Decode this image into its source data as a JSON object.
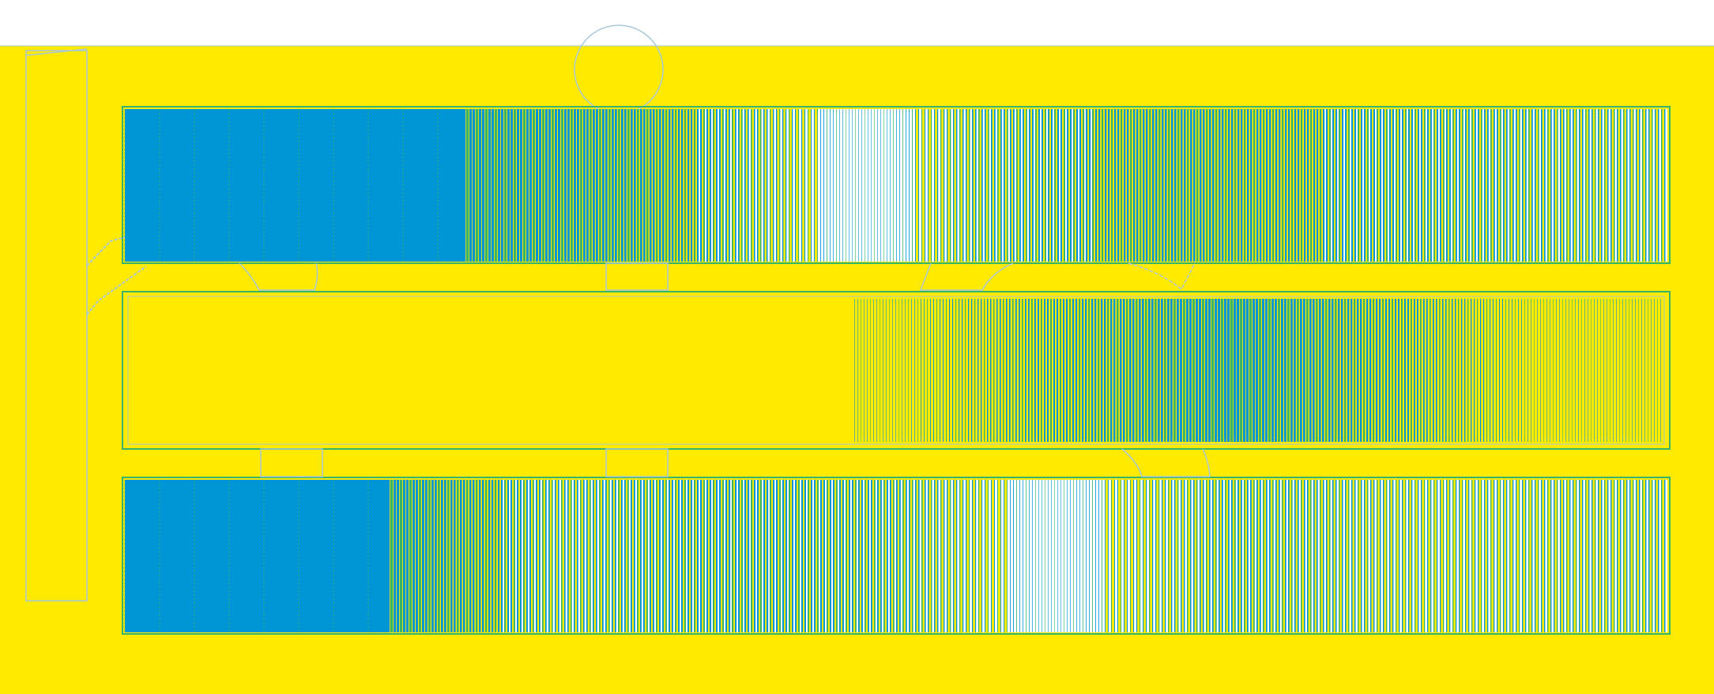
{
  "colors": {
    "background_top": "#ffffff",
    "canvas": "#ffea00",
    "blue": "#0096d6",
    "green": "#38b36a",
    "outline": "#a8c8d8",
    "white": "#ffffff"
  },
  "strips": [
    {
      "name": "strip-top",
      "profile": [
        [
          0.0,
          1.0
        ],
        [
          0.18,
          0.95
        ],
        [
          0.33,
          0.75
        ],
        [
          0.43,
          0.35
        ],
        [
          0.48,
          0.1
        ],
        [
          0.55,
          0.45
        ],
        [
          0.68,
          0.7
        ],
        [
          0.82,
          0.55
        ],
        [
          1.0,
          0.4
        ]
      ],
      "fade": "white"
    },
    {
      "name": "strip-middle",
      "profile": [
        [
          0.0,
          0.0
        ],
        [
          0.46,
          0.0
        ],
        [
          0.5,
          0.15
        ],
        [
          0.6,
          0.55
        ],
        [
          0.72,
          0.9
        ],
        [
          0.83,
          0.55
        ],
        [
          0.92,
          0.15
        ],
        [
          1.0,
          0.05
        ]
      ],
      "fade": "yellow"
    },
    {
      "name": "strip-bottom",
      "profile": [
        [
          0.0,
          1.0
        ],
        [
          0.17,
          0.9
        ],
        [
          0.28,
          0.45
        ],
        [
          0.4,
          0.6
        ],
        [
          0.5,
          0.5
        ],
        [
          0.6,
          0.15
        ],
        [
          0.72,
          0.5
        ],
        [
          0.85,
          0.35
        ],
        [
          1.0,
          0.4
        ]
      ],
      "fade": "white"
    }
  ]
}
